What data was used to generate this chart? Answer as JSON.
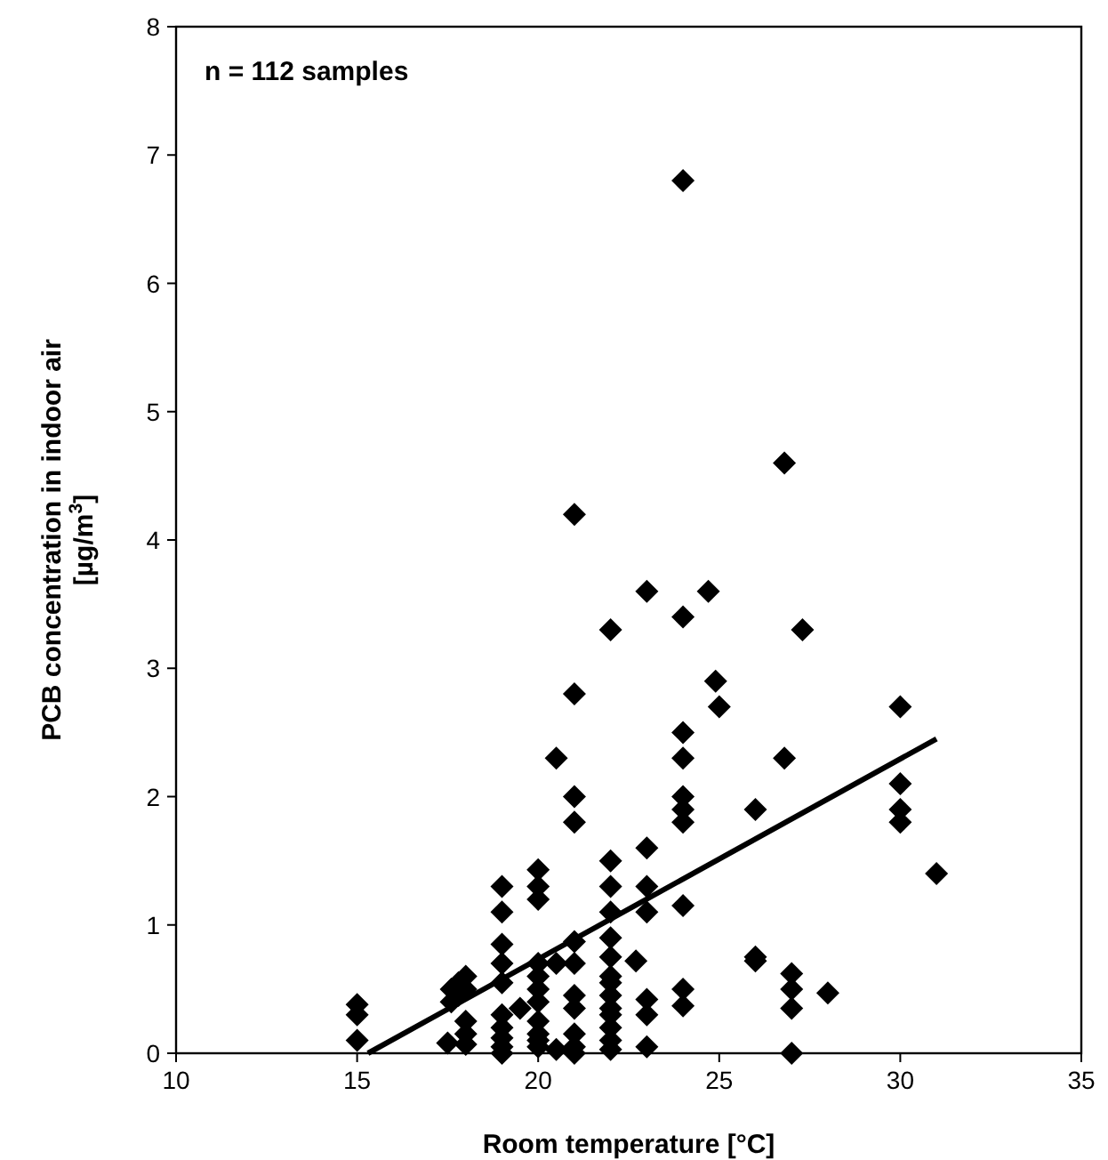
{
  "chart_data": {
    "type": "scatter",
    "xlabel": "Room temperature [°C]",
    "ylabel": "PCB concentration in indoor air\n[µg/m$^{3}$]",
    "annotations": [
      "n = 112 samples"
    ],
    "xlim": [
      10,
      35
    ],
    "xticks": [
      10,
      15,
      20,
      25,
      30,
      35
    ],
    "ylim": [
      0,
      8
    ],
    "yticks": [
      0,
      1,
      2,
      3,
      4,
      5,
      6,
      7,
      8
    ],
    "grid": false,
    "series": [
      {
        "color": "#000000",
        "marker": "diamond",
        "x": [
          15,
          15,
          15,
          17.5,
          17.6,
          17.6,
          17.8,
          17.8,
          18,
          18,
          18,
          18,
          18,
          19,
          19,
          19,
          19,
          19,
          19,
          19,
          19,
          19,
          19,
          19.5,
          20,
          20,
          20,
          20,
          20,
          20,
          20,
          20,
          20,
          20,
          20,
          20.5,
          20.5,
          20.5,
          21,
          21,
          21,
          21,
          21,
          21,
          21,
          21,
          21,
          21,
          21,
          22,
          22,
          22,
          22,
          22,
          22,
          22,
          22,
          22,
          22,
          22,
          22,
          22,
          22,
          22.7,
          23,
          23,
          23,
          23,
          23,
          23,
          23,
          24,
          24,
          24,
          24,
          24,
          24,
          24,
          24,
          24,
          24,
          24.7,
          24.9,
          25,
          26,
          26,
          26,
          26.8,
          26.8,
          27,
          27,
          27,
          27,
          27.3,
          28,
          30,
          30,
          30,
          30,
          31
        ],
        "values": [
          0.38,
          0.3,
          0.1,
          0.08,
          0.5,
          0.4,
          0.55,
          0.45,
          0.6,
          0.5,
          0.25,
          0.15,
          0.07,
          1.3,
          1.1,
          0.85,
          0.7,
          0.55,
          0.3,
          0.2,
          0.12,
          0.05,
          0,
          0.35,
          1.43,
          1.3,
          1.2,
          0.7,
          0.6,
          0.5,
          0.4,
          0.25,
          0.15,
          0.1,
          0.05,
          2.3,
          0.7,
          0.03,
          4.2,
          2.8,
          2,
          1.8,
          0.87,
          0.7,
          0.45,
          0.35,
          0.15,
          0.05,
          0,
          3.3,
          1.5,
          1.3,
          1.1,
          0.9,
          0.75,
          0.6,
          0.55,
          0.45,
          0.35,
          0.3,
          0.2,
          0.1,
          0.03,
          0.72,
          3.6,
          1.6,
          1.3,
          1.1,
          0.42,
          0.3,
          0.05,
          6.8,
          3.4,
          2.5,
          2.3,
          2,
          1.9,
          1.8,
          1.15,
          0.5,
          0.37,
          3.6,
          2.9,
          2.7,
          1.9,
          0.75,
          0.72,
          4.6,
          2.3,
          0.62,
          0.5,
          0.35,
          0,
          3.3,
          0.47,
          2.7,
          2.1,
          1.9,
          1.8,
          1.4
        ]
      },
      {
        "type": "line",
        "color": "#000000",
        "marker": "none",
        "line_style": "solid",
        "x": [
          15.3,
          31
        ],
        "values": [
          0,
          2.45
        ]
      }
    ]
  }
}
